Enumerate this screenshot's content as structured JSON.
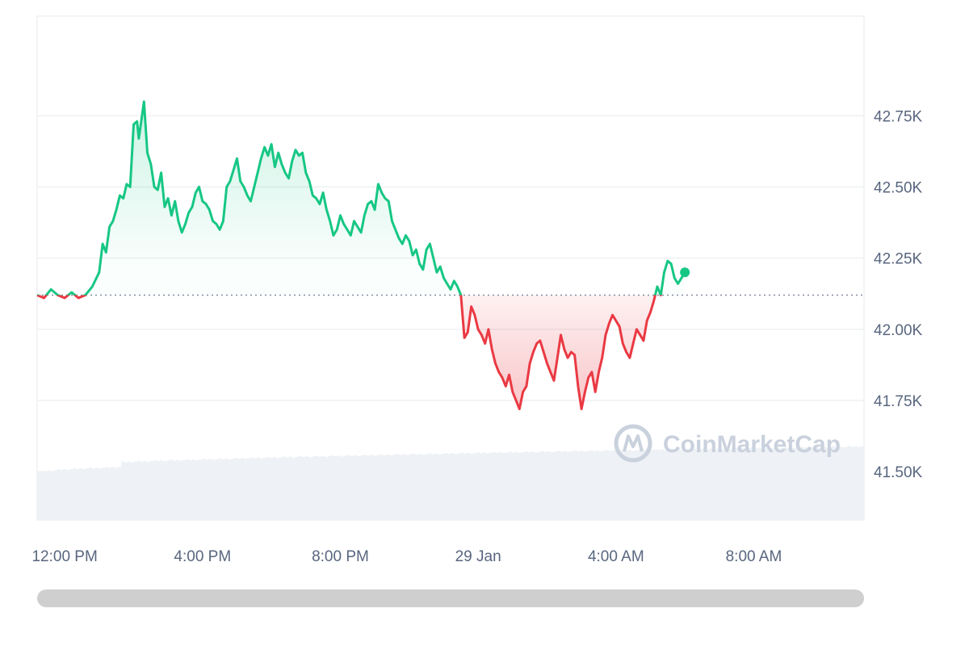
{
  "chart_data": {
    "type": "area",
    "title": "",
    "xlabel": "",
    "ylabel": "",
    "ylim": [
      41.33,
      43.1
    ],
    "y_unit": "K",
    "baseline": 42.12,
    "y_ticks": [
      {
        "value": 42.75,
        "label": "42.75K"
      },
      {
        "value": 42.5,
        "label": "42.50K"
      },
      {
        "value": 42.25,
        "label": "42.25K"
      },
      {
        "value": 42.0,
        "label": "42.00K"
      },
      {
        "value": 41.75,
        "label": "41.75K"
      },
      {
        "value": 41.5,
        "label": "41.50K"
      }
    ],
    "x_ticks": [
      {
        "hour": 0,
        "label": "12:00 PM"
      },
      {
        "hour": 4,
        "label": "4:00 PM"
      },
      {
        "hour": 8,
        "label": "8:00 PM"
      },
      {
        "hour": 12,
        "label": "29 Jan"
      },
      {
        "hour": 16,
        "label": "4:00 AM"
      },
      {
        "hour": 20,
        "label": "8:00 AM"
      }
    ],
    "x_range_hours": [
      -0.8,
      23.2
    ],
    "colors": {
      "above": "#16c784",
      "below": "#ea3943",
      "grid": "#eef0f3",
      "volume": "#eef1f5",
      "baseline": "#858ca2"
    },
    "watermark": "CoinMarketCap",
    "series": [
      {
        "values": [
          [
            -0.8,
            42.12
          ],
          [
            -0.6,
            42.11
          ],
          [
            -0.4,
            42.14
          ],
          [
            -0.2,
            42.12
          ],
          [
            0.0,
            42.11
          ],
          [
            0.2,
            42.13
          ],
          [
            0.4,
            42.11
          ],
          [
            0.6,
            42.12
          ],
          [
            0.8,
            42.15
          ],
          [
            1.0,
            42.2
          ],
          [
            1.1,
            42.3
          ],
          [
            1.2,
            42.27
          ],
          [
            1.3,
            42.36
          ],
          [
            1.4,
            42.38
          ],
          [
            1.5,
            42.42
          ],
          [
            1.6,
            42.47
          ],
          [
            1.7,
            42.46
          ],
          [
            1.8,
            42.51
          ],
          [
            1.9,
            42.5
          ],
          [
            2.0,
            42.72
          ],
          [
            2.1,
            42.73
          ],
          [
            2.15,
            42.67
          ],
          [
            2.3,
            42.8
          ],
          [
            2.4,
            42.62
          ],
          [
            2.5,
            42.58
          ],
          [
            2.6,
            42.5
          ],
          [
            2.7,
            42.49
          ],
          [
            2.8,
            42.55
          ],
          [
            2.9,
            42.43
          ],
          [
            3.0,
            42.46
          ],
          [
            3.1,
            42.4
          ],
          [
            3.2,
            42.45
          ],
          [
            3.3,
            42.38
          ],
          [
            3.4,
            42.34
          ],
          [
            3.5,
            42.37
          ],
          [
            3.6,
            42.41
          ],
          [
            3.7,
            42.43
          ],
          [
            3.8,
            42.48
          ],
          [
            3.9,
            42.5
          ],
          [
            4.0,
            42.45
          ],
          [
            4.1,
            42.44
          ],
          [
            4.2,
            42.42
          ],
          [
            4.3,
            42.38
          ],
          [
            4.4,
            42.37
          ],
          [
            4.5,
            42.35
          ],
          [
            4.6,
            42.38
          ],
          [
            4.7,
            42.5
          ],
          [
            4.8,
            42.52
          ],
          [
            4.9,
            42.56
          ],
          [
            5.0,
            42.6
          ],
          [
            5.1,
            42.52
          ],
          [
            5.2,
            42.5
          ],
          [
            5.3,
            42.47
          ],
          [
            5.4,
            42.45
          ],
          [
            5.5,
            42.5
          ],
          [
            5.6,
            42.55
          ],
          [
            5.7,
            42.6
          ],
          [
            5.8,
            42.64
          ],
          [
            5.9,
            42.61
          ],
          [
            6.0,
            42.65
          ],
          [
            6.1,
            42.57
          ],
          [
            6.2,
            42.62
          ],
          [
            6.3,
            42.58
          ],
          [
            6.4,
            42.55
          ],
          [
            6.5,
            42.53
          ],
          [
            6.6,
            42.59
          ],
          [
            6.7,
            42.63
          ],
          [
            6.8,
            42.61
          ],
          [
            6.9,
            42.62
          ],
          [
            7.0,
            42.55
          ],
          [
            7.1,
            42.52
          ],
          [
            7.2,
            42.47
          ],
          [
            7.3,
            42.46
          ],
          [
            7.4,
            42.44
          ],
          [
            7.5,
            42.48
          ],
          [
            7.6,
            42.42
          ],
          [
            7.7,
            42.38
          ],
          [
            7.8,
            42.33
          ],
          [
            7.9,
            42.35
          ],
          [
            8.0,
            42.4
          ],
          [
            8.1,
            42.37
          ],
          [
            8.2,
            42.35
          ],
          [
            8.3,
            42.33
          ],
          [
            8.4,
            42.38
          ],
          [
            8.5,
            42.36
          ],
          [
            8.6,
            42.34
          ],
          [
            8.7,
            42.4
          ],
          [
            8.8,
            42.44
          ],
          [
            8.9,
            42.45
          ],
          [
            9.0,
            42.42
          ],
          [
            9.1,
            42.51
          ],
          [
            9.2,
            42.48
          ],
          [
            9.3,
            42.46
          ],
          [
            9.4,
            42.45
          ],
          [
            9.5,
            42.38
          ],
          [
            9.6,
            42.35
          ],
          [
            9.7,
            42.32
          ],
          [
            9.8,
            42.3
          ],
          [
            9.9,
            42.33
          ],
          [
            10.0,
            42.31
          ],
          [
            10.1,
            42.26
          ],
          [
            10.2,
            42.28
          ],
          [
            10.3,
            42.23
          ],
          [
            10.4,
            42.21
          ],
          [
            10.5,
            42.28
          ],
          [
            10.6,
            42.3
          ],
          [
            10.7,
            42.25
          ],
          [
            10.8,
            42.2
          ],
          [
            10.9,
            42.22
          ],
          [
            11.0,
            42.18
          ],
          [
            11.1,
            42.16
          ],
          [
            11.2,
            42.14
          ],
          [
            11.3,
            42.17
          ],
          [
            11.4,
            42.15
          ],
          [
            11.5,
            42.12
          ],
          [
            11.6,
            41.97
          ],
          [
            11.7,
            41.99
          ],
          [
            11.8,
            42.08
          ],
          [
            11.9,
            42.05
          ],
          [
            12.0,
            42.0
          ],
          [
            12.1,
            41.98
          ],
          [
            12.2,
            41.95
          ],
          [
            12.3,
            42.0
          ],
          [
            12.4,
            41.93
          ],
          [
            12.5,
            41.88
          ],
          [
            12.6,
            41.85
          ],
          [
            12.7,
            41.83
          ],
          [
            12.8,
            41.8
          ],
          [
            12.9,
            41.84
          ],
          [
            13.0,
            41.78
          ],
          [
            13.1,
            41.75
          ],
          [
            13.2,
            41.72
          ],
          [
            13.3,
            41.78
          ],
          [
            13.4,
            41.8
          ],
          [
            13.5,
            41.88
          ],
          [
            13.6,
            41.92
          ],
          [
            13.7,
            41.95
          ],
          [
            13.8,
            41.96
          ],
          [
            13.9,
            41.92
          ],
          [
            14.0,
            41.88
          ],
          [
            14.1,
            41.85
          ],
          [
            14.2,
            41.82
          ],
          [
            14.3,
            41.9
          ],
          [
            14.4,
            41.98
          ],
          [
            14.5,
            41.93
          ],
          [
            14.6,
            41.9
          ],
          [
            14.7,
            41.92
          ],
          [
            14.8,
            41.91
          ],
          [
            14.9,
            41.8
          ],
          [
            15.0,
            41.72
          ],
          [
            15.1,
            41.78
          ],
          [
            15.2,
            41.83
          ],
          [
            15.3,
            41.85
          ],
          [
            15.4,
            41.78
          ],
          [
            15.5,
            41.85
          ],
          [
            15.6,
            41.9
          ],
          [
            15.7,
            41.98
          ],
          [
            15.8,
            42.02
          ],
          [
            15.9,
            42.05
          ],
          [
            16.0,
            42.03
          ],
          [
            16.1,
            42.01
          ],
          [
            16.2,
            41.95
          ],
          [
            16.3,
            41.92
          ],
          [
            16.4,
            41.9
          ],
          [
            16.5,
            41.95
          ],
          [
            16.6,
            42.0
          ],
          [
            16.7,
            41.98
          ],
          [
            16.8,
            41.96
          ],
          [
            16.9,
            42.03
          ],
          [
            17.0,
            42.06
          ],
          [
            17.1,
            42.1
          ],
          [
            17.2,
            42.15
          ],
          [
            17.3,
            42.12
          ],
          [
            17.4,
            42.2
          ],
          [
            17.5,
            42.24
          ],
          [
            17.6,
            42.23
          ],
          [
            17.7,
            42.18
          ],
          [
            17.8,
            42.16
          ],
          [
            17.9,
            42.18
          ],
          [
            18.0,
            42.2
          ]
        ]
      }
    ]
  }
}
